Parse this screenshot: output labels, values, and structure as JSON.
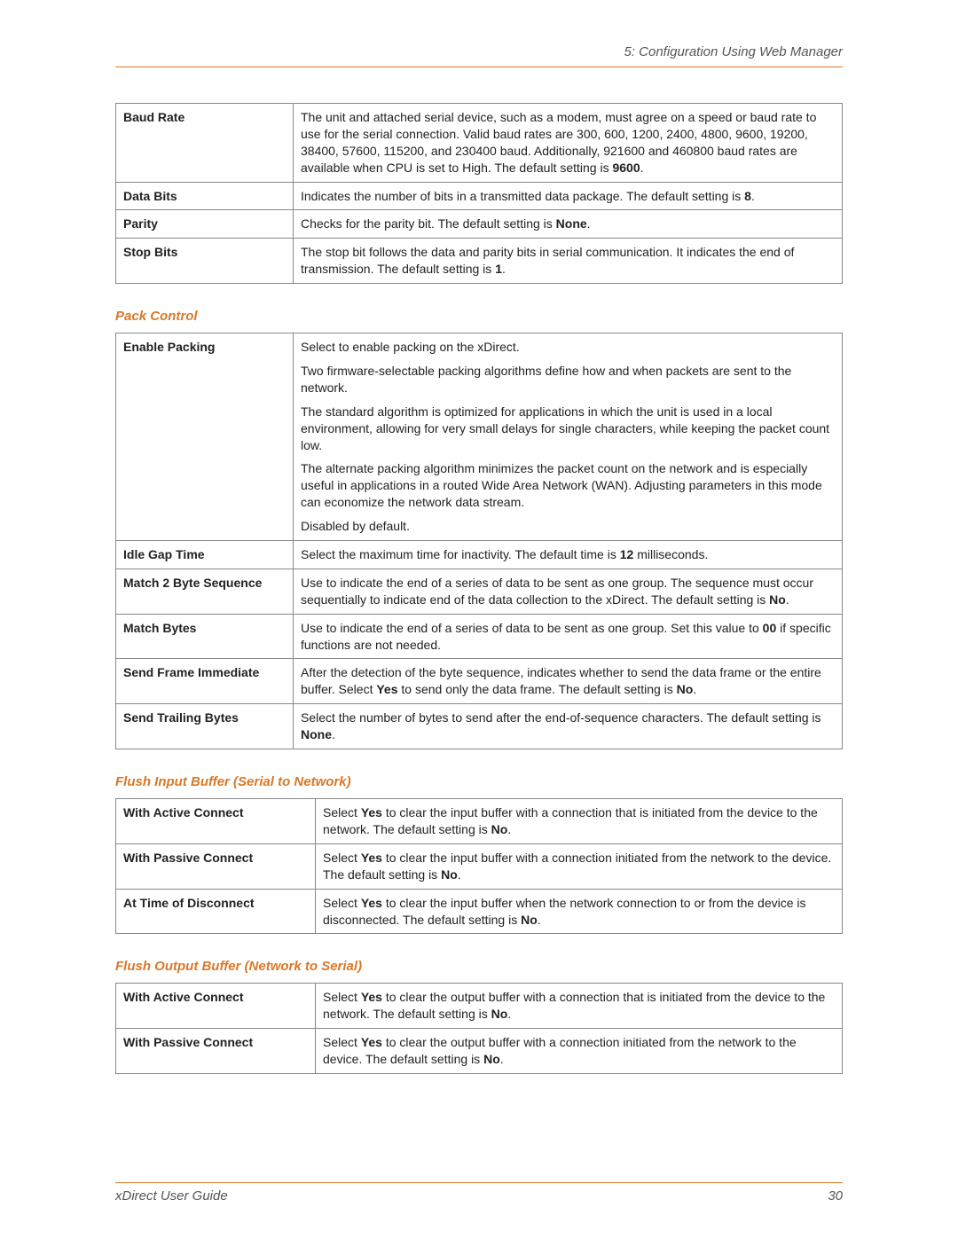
{
  "header": {
    "title": "5: Configuration Using Web Manager"
  },
  "footer": {
    "guide": "xDirect User Guide",
    "page": "30"
  },
  "colors": {
    "accent": "#d97828",
    "text": "#222",
    "border": "#888",
    "muted": "#555"
  },
  "serial_settings": {
    "rows": [
      {
        "label": "Baud Rate",
        "desc_pre": "The unit and attached serial device, such as a modem, must agree on a speed or baud rate to use for the serial connection. Valid baud rates are 300, 600, 1200, 2400, 4800, 9600, 19200, 38400, 57600, 115200, and 230400 baud. Additionally, 921600 and 460800 baud rates are available when CPU is set to High.  The default setting is ",
        "bold": "9600",
        "desc_post": "."
      },
      {
        "label": "Data Bits",
        "desc_pre": "Indicates the number of bits in a transmitted data package. The default setting is ",
        "bold": "8",
        "desc_post": "."
      },
      {
        "label": "Parity",
        "desc_pre": "Checks for the parity bit. The default setting is ",
        "bold": "None",
        "desc_post": "."
      },
      {
        "label": "Stop Bits",
        "desc_pre": "The stop bit follows the data and parity bits in serial communication. It indicates the end of transmission. The default setting is ",
        "bold": "1",
        "desc_post": "."
      }
    ]
  },
  "pack_control": {
    "heading": "Pack Control",
    "enable_packing": {
      "label": "Enable Packing",
      "p1": "Select to enable packing on the xDirect.",
      "p2": "Two firmware-selectable packing algorithms define how and when packets are sent to the network.",
      "p3": "The standard algorithm is optimized for applications in which the unit is used in a local environment, allowing for very small delays for single characters, while keeping the packet count low.",
      "p4": "The alternate packing algorithm minimizes the packet count on the network and is especially useful in applications in a routed Wide Area Network (WAN). Adjusting parameters in this mode can economize the network data stream.",
      "p5": "Disabled by default."
    },
    "idle_gap": {
      "label": "Idle Gap Time",
      "pre": "Select the maximum time for inactivity. The default time is ",
      "bold": "12",
      "post": " milliseconds."
    },
    "match2": {
      "label": "Match 2 Byte Sequence",
      "pre": "Use to indicate the end of a series of data to be sent as one group. The sequence must occur sequentially to indicate end of the data collection to the xDirect. The default setting is ",
      "bold": "No",
      "post": "."
    },
    "match_bytes": {
      "label": "Match Bytes",
      "pre": "Use to indicate the end of a series of data to be sent as one group. Set this value to ",
      "bold": "00",
      "post": " if specific functions are not needed."
    },
    "send_frame": {
      "label": "Send Frame Immediate",
      "pre1": "After the detection of the byte sequence, indicates whether to send the data frame or the entire buffer. Select ",
      "bold1": "Yes",
      "mid": " to send only the data frame. The default setting is ",
      "bold2": "No",
      "post": "."
    },
    "send_trail": {
      "label": "Send Trailing Bytes",
      "pre": "Select the number of bytes to send after the end-of-sequence characters. The default setting is ",
      "bold": "None",
      "post": "."
    }
  },
  "flush_input": {
    "heading": "Flush Input Buffer (Serial to Network)",
    "rows": [
      {
        "label": "With Active Connect",
        "pre": "Select ",
        "b1": "Yes",
        "mid": " to clear the input buffer with a connection that is initiated from the device to the network. The default setting is ",
        "b2": "No",
        "post": "."
      },
      {
        "label": "With Passive Connect",
        "pre": "Select ",
        "b1": "Yes",
        "mid": " to clear the input buffer with a connection initiated from the network to the device. The default setting is ",
        "b2": "No",
        "post": "."
      },
      {
        "label": "At Time of Disconnect",
        "pre": "Select ",
        "b1": "Yes",
        "mid": " to clear the input buffer when the network connection to or from the device is disconnected. The default setting is ",
        "b2": "No",
        "post": "."
      }
    ]
  },
  "flush_output": {
    "heading": "Flush Output Buffer (Network to Serial)",
    "rows": [
      {
        "label": "With Active Connect",
        "pre": "Select ",
        "b1": "Yes",
        "mid": " to clear the output buffer with a connection that is initiated from the device to the network. The default setting is ",
        "b2": "No",
        "post": "."
      },
      {
        "label": "With Passive Connect",
        "pre": "Select ",
        "b1": "Yes",
        "mid": " to clear the output buffer with a connection initiated from the network to the device. The default setting is ",
        "b2": "No",
        "post": "."
      }
    ]
  }
}
